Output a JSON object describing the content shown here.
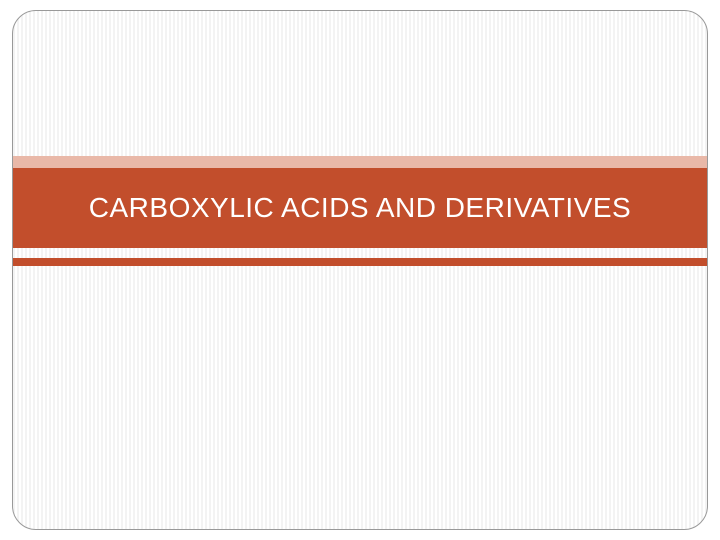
{
  "slide": {
    "title": "CARBOXYLIC ACIDS AND DERIVATIVES",
    "title_fontsize": 28,
    "title_color": "#ffffff",
    "title_band_color": "#c24e2c",
    "accent_band_color": "#e9b8a8",
    "bottom_accent_color": "#c24e2c",
    "background_pattern": "vertical-stripes",
    "stripe_color_1": "#f3f3f3",
    "stripe_color_2": "#ffffff",
    "frame_border_color": "#999999",
    "frame_border_radius": 24
  }
}
